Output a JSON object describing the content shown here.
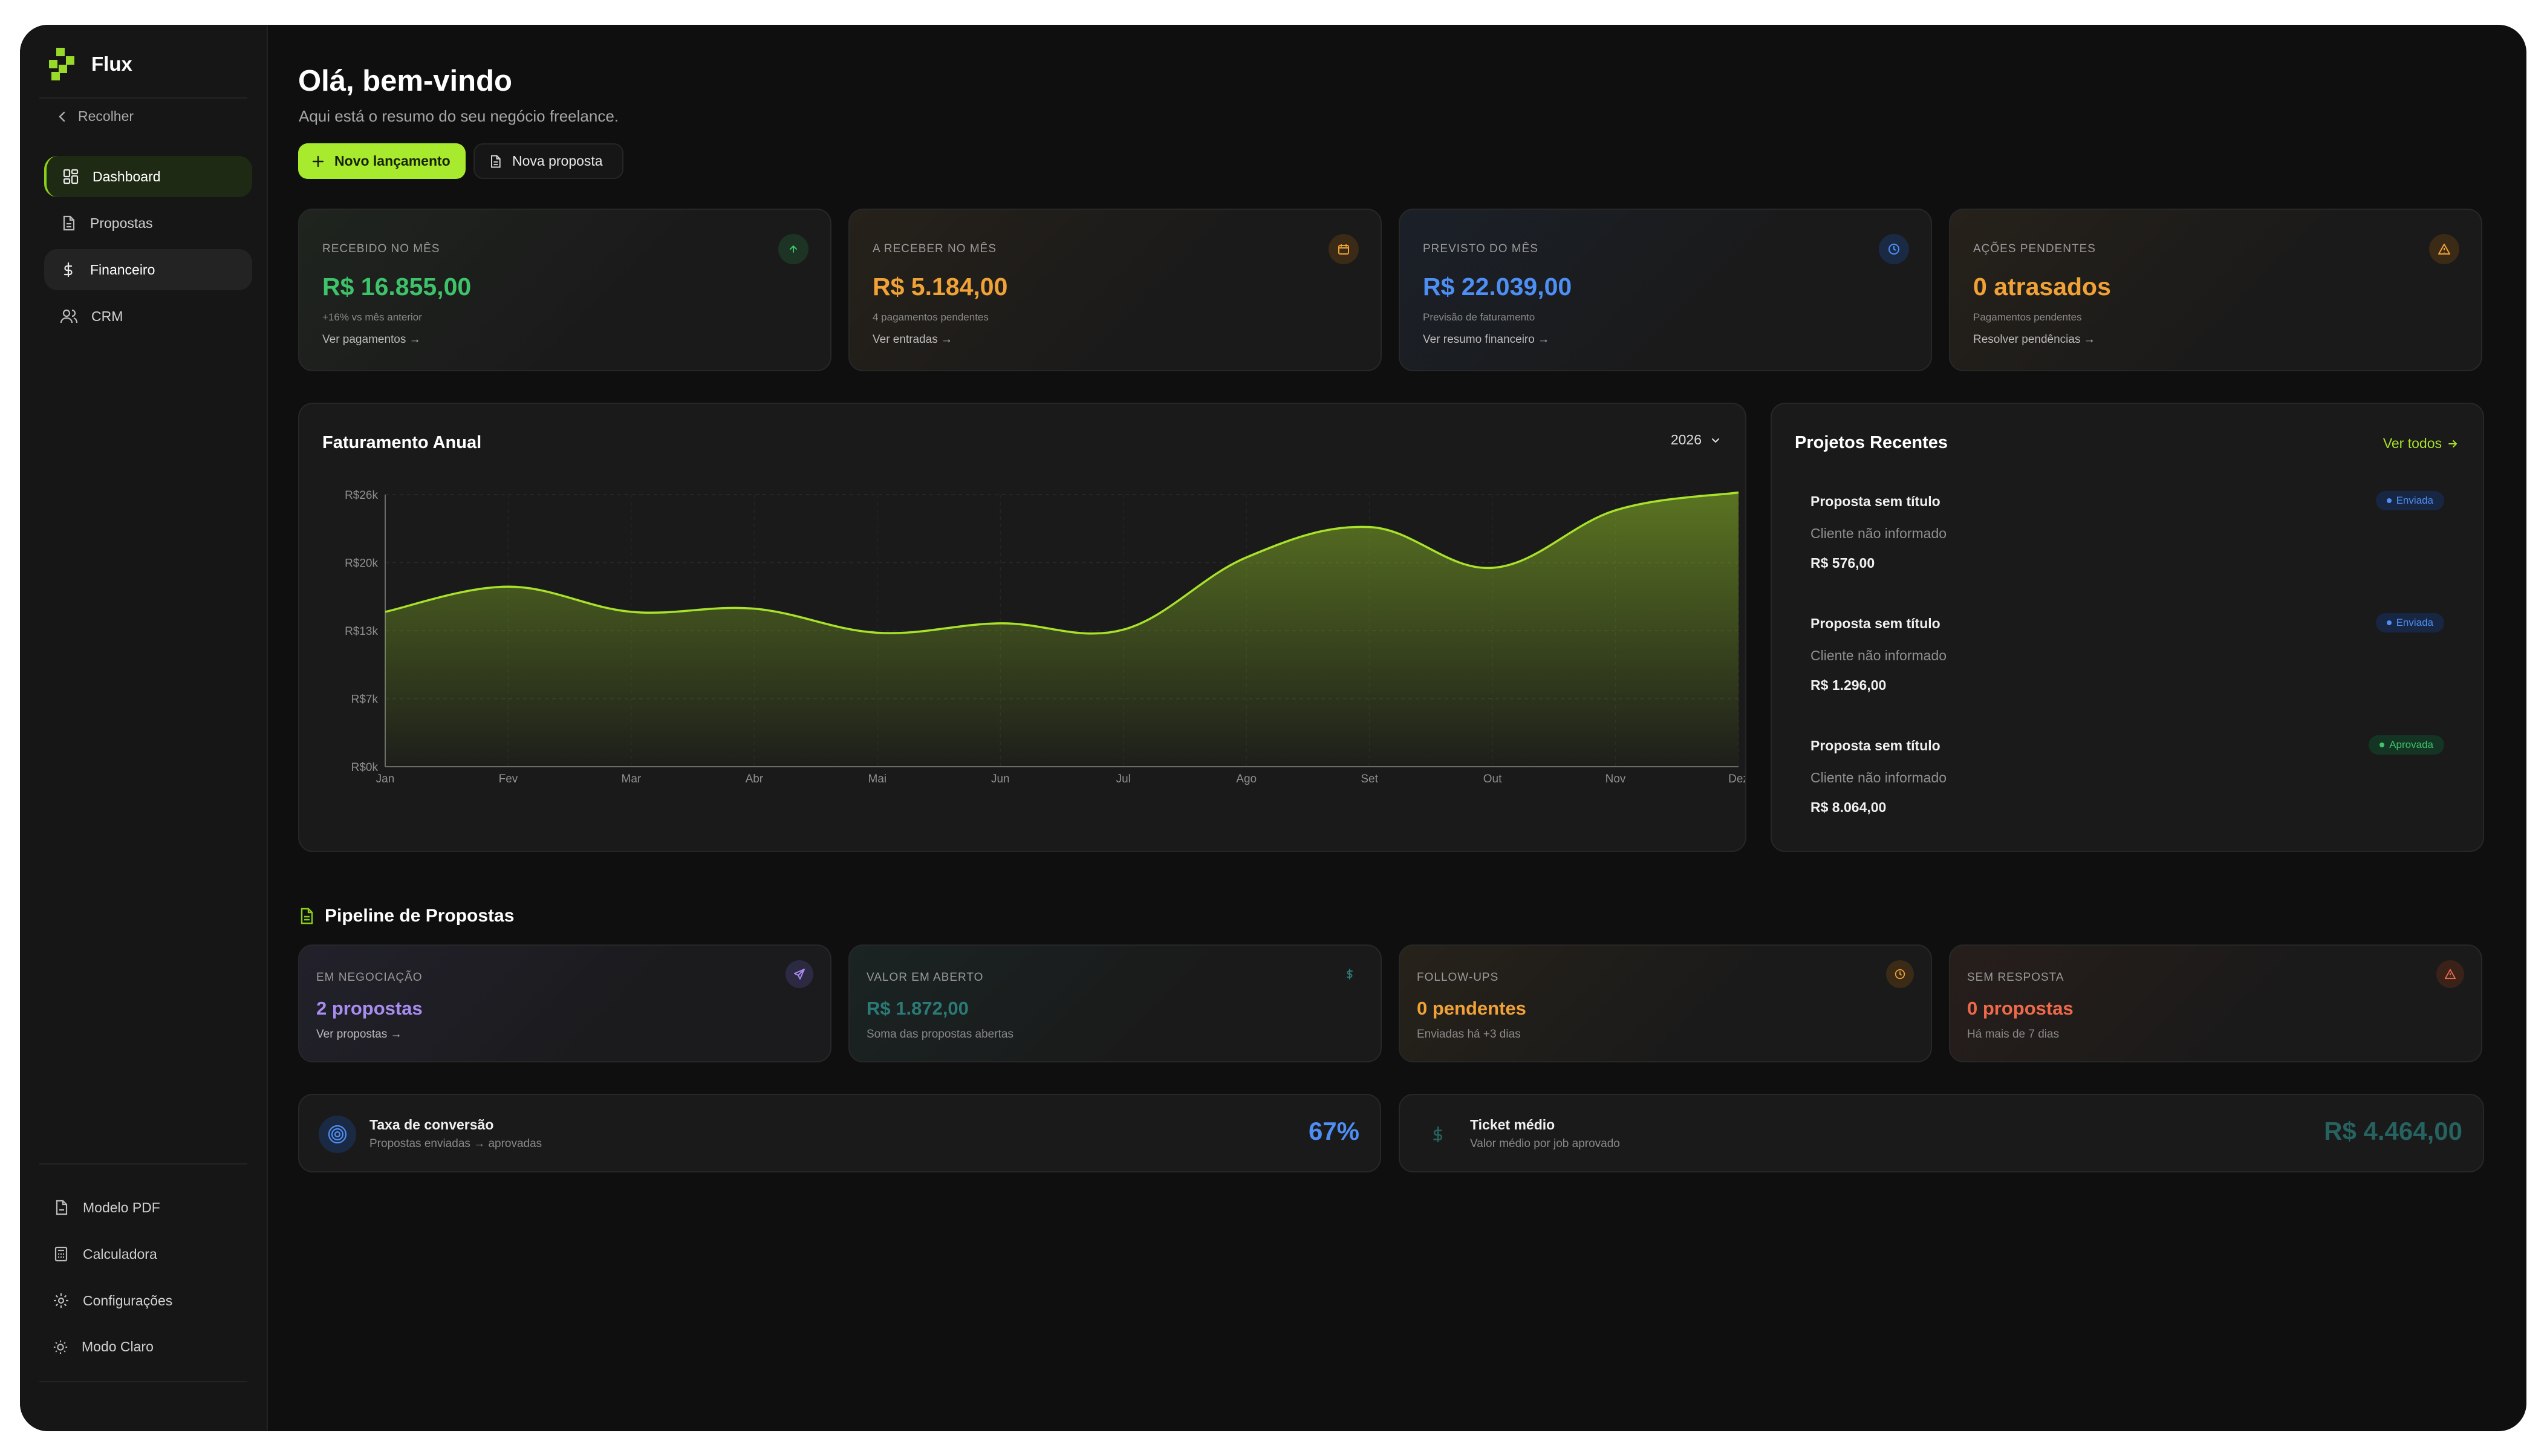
{
  "app": {
    "name": "Flux"
  },
  "sidebar": {
    "collapse_label": "Recolher",
    "items": [
      {
        "label": "Dashboard"
      },
      {
        "label": "Propostas"
      },
      {
        "label": "Financeiro"
      },
      {
        "label": "CRM"
      }
    ],
    "bottom_items": [
      {
        "label": "Modelo PDF"
      },
      {
        "label": "Calculadora"
      },
      {
        "label": "Configurações"
      },
      {
        "label": "Modo Claro"
      }
    ]
  },
  "header": {
    "greeting": "Olá, bem-vindo",
    "subtitle": "Aqui está o resumo do seu negócio freelance.",
    "primary_button": "Novo lançamento",
    "secondary_button": "Nova proposta"
  },
  "kpis": [
    {
      "label": "RECEBIDO NO MÊS",
      "value": "R$ 16.855,00",
      "note": "+16% vs mês anterior",
      "link": "Ver pagamentos →",
      "color": "#3ec26a",
      "icon": "arrow-up-icon"
    },
    {
      "label": "A RECEBER NO MÊS",
      "value": "R$ 5.184,00",
      "note": "4 pagamentos pendentes",
      "link": "Ver entradas →",
      "color": "#f0a237",
      "icon": "calendar-icon"
    },
    {
      "label": "PREVISTO DO MÊS",
      "value": "R$ 22.039,00",
      "note": "Previsão de faturamento",
      "link": "Ver resumo financeiro →",
      "color": "#4e8ff5",
      "icon": "clock-icon"
    },
    {
      "label": "AÇÕES PENDENTES",
      "value": "0 atrasados",
      "note": "Pagamentos pendentes",
      "link": "Resolver pendências →",
      "color": "#f0a237",
      "icon": "warning-icon"
    }
  ],
  "revenue": {
    "title": "Faturamento Anual",
    "year": "2026"
  },
  "chart_data": {
    "type": "area",
    "title": "Faturamento Anual",
    "categories": [
      "Jan",
      "Fev",
      "Mar",
      "Abr",
      "Mai",
      "Jun",
      "Jul",
      "Ago",
      "Set",
      "Out",
      "Nov",
      "Dez"
    ],
    "values": [
      14800,
      17200,
      14800,
      15100,
      12800,
      13700,
      13100,
      20000,
      22900,
      19000,
      24500,
      26200
    ],
    "yticks": [
      "R$0k",
      "R$7k",
      "R$13k",
      "R$20k",
      "R$26k"
    ],
    "ytick_values": [
      0,
      6500,
      13000,
      19500,
      26000
    ],
    "ylim": [
      0,
      26000
    ],
    "color": "#a8e22a",
    "grid": true
  },
  "projects": {
    "title": "Projetos Recentes",
    "view_all": "Ver todos",
    "items": [
      {
        "title": "Proposta sem título",
        "client": "Cliente não informado",
        "value": "R$ 576,00",
        "status": "Enviada",
        "status_color": "#4e8ff5"
      },
      {
        "title": "Proposta sem título",
        "client": "Cliente não informado",
        "value": "R$ 1.296,00",
        "status": "Enviada",
        "status_color": "#4e8ff5"
      },
      {
        "title": "Proposta sem título",
        "client": "Cliente não informado",
        "value": "R$ 8.064,00",
        "status": "Aprovada",
        "status_color": "#3ec26a"
      }
    ]
  },
  "pipeline": {
    "title": "Pipeline de Propostas",
    "cards": [
      {
        "label": "EM NEGOCIAÇÃO",
        "value": "2 propostas",
        "note": "Ver propostas →",
        "color": "#a98cf0",
        "icon": "send-icon"
      },
      {
        "label": "VALOR EM ABERTO",
        "value": "R$ 1.872,00",
        "note": "Soma das propostas abertas",
        "color": "#2b7a76",
        "icon": "dollar-icon"
      },
      {
        "label": "FOLLOW-UPS",
        "value": "0 pendentes",
        "note": "Enviadas há +3 dias",
        "color": "#f0a237",
        "icon": "clock-icon"
      },
      {
        "label": "SEM RESPOSTA",
        "value": "0 propostas",
        "note": "Há mais de 7 dias",
        "color": "#ef6a4a",
        "icon": "warning-icon"
      }
    ]
  },
  "metrics": {
    "conversion": {
      "title": "Taxa de conversão",
      "subtitle": "Propostas enviadas → aprovadas",
      "value": "67%",
      "color": "#4e8ff5"
    },
    "ticket": {
      "title": "Ticket médio",
      "subtitle": "Valor médio por job aprovado",
      "value": "R$ 4.464,00",
      "color": "#26625f"
    }
  }
}
